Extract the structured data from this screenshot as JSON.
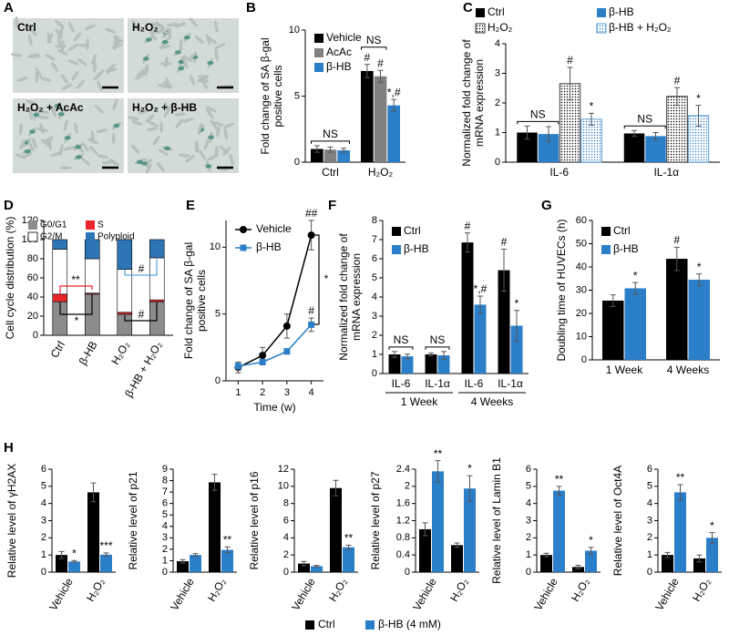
{
  "images": {
    "panel": "A",
    "captions": [
      "Ctrl",
      "H₂O₂",
      "H₂O₂ + AcAc",
      "H₂O₂ + β-HB"
    ]
  },
  "chart_data": [
    {
      "panel": "B",
      "type": "bar",
      "ylabel": [
        "Fold change of SA β-gal",
        "positive cells"
      ],
      "categories": [
        "Ctrl",
        "H₂O₂"
      ],
      "series": [
        {
          "name": "Vehicle",
          "color": "#000000",
          "values": [
            1.0,
            6.9
          ],
          "errors": [
            0.25,
            0.5
          ],
          "annotations": [
            null,
            "#"
          ]
        },
        {
          "name": "AcAc",
          "color": "#808080",
          "values": [
            0.95,
            6.5
          ],
          "errors": [
            0.2,
            0.45
          ],
          "annotations": [
            null,
            "#"
          ]
        },
        {
          "name": "β-HB",
          "color": "#2b7fc9",
          "values": [
            0.9,
            4.3
          ],
          "errors": [
            0.15,
            0.45
          ],
          "annotations": [
            null,
            "*,#"
          ]
        }
      ],
      "bracket_annotations": [
        "NS",
        "NS"
      ],
      "ylim": [
        0,
        10
      ],
      "yticks": [
        0,
        5,
        10
      ]
    },
    {
      "panel": "C",
      "type": "bar",
      "ylabel": [
        "Normalized fold change of",
        "mRNA expression"
      ],
      "categories": [
        "IL-6",
        "IL-1α"
      ],
      "series": [
        {
          "name": "Ctrl",
          "color": "#000000",
          "values": [
            1.0,
            0.97
          ],
          "errors": [
            0.22,
            0.1
          ]
        },
        {
          "name": "β-HB",
          "color": "#2b7fc9",
          "values": [
            0.95,
            0.88
          ],
          "errors": [
            0.25,
            0.12
          ]
        },
        {
          "name": "H₂O₂",
          "color": "#000000",
          "pattern": "dotted",
          "values": [
            2.65,
            2.22
          ],
          "errors": [
            0.55,
            0.3
          ],
          "annotations": [
            "#",
            "#"
          ]
        },
        {
          "name": "β-HB + H₂O₂",
          "color": "#2b7fc9",
          "pattern": "dotted",
          "values": [
            1.45,
            1.57
          ],
          "errors": [
            0.2,
            0.35
          ],
          "annotations": [
            "*",
            "*"
          ]
        }
      ],
      "bracket_annotations": [
        "NS",
        "NS"
      ],
      "ylim": [
        0,
        4
      ],
      "yticks": [
        0,
        1,
        2,
        3,
        4
      ]
    },
    {
      "panel": "D",
      "type": "stacked_bar",
      "ylabel": [
        "Cell cycle distribution (%)"
      ],
      "categories": [
        "Ctrl",
        "β-HB",
        "H₂O₂",
        "β-HB + H₂O₂"
      ],
      "series": [
        {
          "name": "G0/G1",
          "color": "#8c8c8c",
          "values": [
            35,
            43,
            22,
            35
          ]
        },
        {
          "name": "S",
          "color": "#e8262b",
          "values": [
            8,
            1,
            2,
            2
          ]
        },
        {
          "name": "G2/M",
          "color": "#ffffff",
          "values": [
            47,
            36,
            45,
            44
          ]
        },
        {
          "name": "Polyploid",
          "color": "#2e75b6",
          "values": [
            10,
            20,
            31,
            19
          ]
        }
      ],
      "bracket_annotations": [
        "**",
        "*",
        "#",
        "#"
      ],
      "ylim": [
        0,
        120
      ],
      "yticks": [
        0,
        20,
        40,
        60,
        80,
        100,
        120
      ]
    },
    {
      "panel": "E",
      "type": "line",
      "ylabel": [
        "Fold change of SA β-gal",
        "positive cells"
      ],
      "xlabel": "Time (w)",
      "x": [
        1,
        2,
        3,
        4
      ],
      "series": [
        {
          "name": "Vehicle",
          "color": "#000000",
          "marker": "circle",
          "values": [
            1.0,
            1.9,
            4.1,
            10.9
          ],
          "errors": [
            0.4,
            0.6,
            0.9,
            1.1
          ],
          "annotations": [
            null,
            null,
            null,
            "##"
          ]
        },
        {
          "name": "β-HB",
          "color": "#2b7fc9",
          "marker": "square",
          "values": [
            1.1,
            1.4,
            2.2,
            4.2
          ],
          "errors": [
            0.3,
            0.2,
            0.2,
            0.5
          ],
          "annotations": [
            null,
            null,
            null,
            "#"
          ]
        }
      ],
      "bracket_annotations": [
        "*"
      ],
      "xlim": [
        0.5,
        4.5
      ],
      "xticks": [
        1,
        2,
        3,
        4
      ],
      "ylim": [
        0,
        12
      ],
      "yticks": [
        0,
        5,
        10
      ]
    },
    {
      "panel": "F",
      "type": "bar",
      "ylabel": [
        "Normalized fold change of",
        "mRNA expression"
      ],
      "categories": [
        "IL-6",
        "IL-1α",
        "IL-6",
        "IL-1α"
      ],
      "group_labels": [
        "1 Week",
        "4 Weeks"
      ],
      "series": [
        {
          "name": "Ctrl",
          "color": "#000000",
          "values": [
            1.0,
            1.0,
            6.85,
            5.4
          ],
          "errors": [
            0.15,
            0.08,
            0.5,
            1.1
          ],
          "annotations": [
            null,
            null,
            "#",
            "#"
          ]
        },
        {
          "name": "β-HB",
          "color": "#2b7fc9",
          "values": [
            0.9,
            0.95,
            3.6,
            2.5
          ],
          "errors": [
            0.12,
            0.2,
            0.45,
            0.8
          ],
          "annotations": [
            null,
            null,
            "*,#",
            "*"
          ]
        }
      ],
      "bracket_annotations": [
        "NS",
        "NS"
      ],
      "ylim": [
        0,
        8
      ],
      "yticks": [
        0,
        1,
        2,
        3,
        4,
        5,
        6,
        7,
        8
      ]
    },
    {
      "panel": "G",
      "type": "bar",
      "ylabel": [
        "Doubling time of HUVECs (h)"
      ],
      "categories": [
        "1 Week",
        "4 Weeks"
      ],
      "series": [
        {
          "name": "Ctrl",
          "color": "#000000",
          "values": [
            25.5,
            43.5
          ],
          "errors": [
            2.5,
            5
          ],
          "annotations": [
            null,
            "#"
          ]
        },
        {
          "name": "β-HB",
          "color": "#2b7fc9",
          "values": [
            30.8,
            34.5
          ],
          "errors": [
            2.5,
            2.5
          ],
          "annotations": [
            "*",
            "*"
          ]
        }
      ],
      "ylim": [
        0,
        60
      ],
      "yticks": [
        0,
        10,
        20,
        30,
        40,
        50,
        60
      ]
    },
    {
      "panel": "H",
      "type": "bar",
      "ylabel": [
        "Relative level of γH2AX"
      ],
      "categories": [
        "Vehicle",
        "H₂O₂"
      ],
      "series": [
        {
          "color": "#000000",
          "values": [
            1.0,
            4.65
          ],
          "errors": [
            0.2,
            0.55
          ]
        },
        {
          "color": "#2b7fc9",
          "values": [
            0.62,
            1.02
          ],
          "errors": [
            0.06,
            0.1
          ],
          "annotations": [
            "*",
            "***"
          ]
        }
      ],
      "ylim": [
        0,
        6
      ],
      "yticks": [
        0,
        1,
        2,
        3,
        4,
        5,
        6
      ]
    },
    {
      "type": "bar",
      "ylabel": [
        "Relative level of p21"
      ],
      "categories": [
        "Vehicle",
        "H₂O₂"
      ],
      "series": [
        {
          "color": "#000000",
          "values": [
            0.95,
            7.85
          ],
          "errors": [
            0.15,
            0.7
          ]
        },
        {
          "color": "#2b7fc9",
          "values": [
            1.5,
            1.95
          ],
          "errors": [
            0.12,
            0.25
          ],
          "annotations": [
            null,
            "**"
          ]
        }
      ],
      "ylim": [
        0,
        9
      ],
      "yticks": [
        0,
        1,
        2,
        3,
        4,
        5,
        6,
        7,
        8,
        9
      ]
    },
    {
      "type": "bar",
      "ylabel": [
        "Relative level of p16"
      ],
      "categories": [
        "Vehicle",
        "H₂O₂"
      ],
      "series": [
        {
          "color": "#000000",
          "values": [
            1.0,
            9.8
          ],
          "errors": [
            0.25,
            0.9
          ]
        },
        {
          "color": "#2b7fc9",
          "values": [
            0.7,
            2.9
          ],
          "errors": [
            0.08,
            0.25
          ],
          "annotations": [
            null,
            "**"
          ]
        }
      ],
      "ylim": [
        0,
        12
      ],
      "yticks": [
        0,
        2,
        4,
        6,
        8,
        10,
        12
      ]
    },
    {
      "type": "bar",
      "ylabel": [
        "Relative level of p27"
      ],
      "categories": [
        "Vehicle",
        "H₂O₂"
      ],
      "series": [
        {
          "color": "#000000",
          "values": [
            1.0,
            0.63
          ],
          "errors": [
            0.15,
            0.05
          ]
        },
        {
          "color": "#2b7fc9",
          "values": [
            2.35,
            1.95
          ],
          "errors": [
            0.25,
            0.3
          ],
          "annotations": [
            "**",
            "*"
          ]
        }
      ],
      "ylim": [
        0,
        2.4
      ],
      "yticks": [
        0,
        0.4,
        0.8,
        1.2,
        1.6,
        2,
        2.4
      ]
    },
    {
      "type": "bar",
      "ylabel": [
        "Relative level of Lamin B1"
      ],
      "categories": [
        "Vehicle",
        "H₂O₂"
      ],
      "series": [
        {
          "color": "#000000",
          "values": [
            1.0,
            0.3
          ],
          "errors": [
            0.1,
            0.1
          ]
        },
        {
          "color": "#2b7fc9",
          "values": [
            4.75,
            1.25
          ],
          "errors": [
            0.25,
            0.2
          ],
          "annotations": [
            "**",
            "*"
          ]
        }
      ],
      "ylim": [
        0,
        6
      ],
      "yticks": [
        0,
        1,
        2,
        3,
        4,
        5,
        6
      ]
    },
    {
      "type": "bar",
      "ylabel": [
        "Relative level of Oct4A"
      ],
      "categories": [
        "Vehicle",
        "H₂O₂"
      ],
      "series": [
        {
          "color": "#000000",
          "values": [
            1.0,
            0.8
          ],
          "errors": [
            0.15,
            0.2
          ]
        },
        {
          "color": "#2b7fc9",
          "values": [
            4.65,
            2.0
          ],
          "errors": [
            0.45,
            0.3
          ],
          "annotations": [
            "**",
            "*"
          ]
        }
      ],
      "ylim": [
        0,
        6
      ],
      "yticks": [
        0,
        1,
        2,
        3,
        4,
        5,
        6
      ]
    }
  ],
  "shared_legend": [
    {
      "name": "Ctrl",
      "color": "#000000"
    },
    {
      "name": "β-HB (4 mM)",
      "color": "#2b7fc9"
    }
  ]
}
